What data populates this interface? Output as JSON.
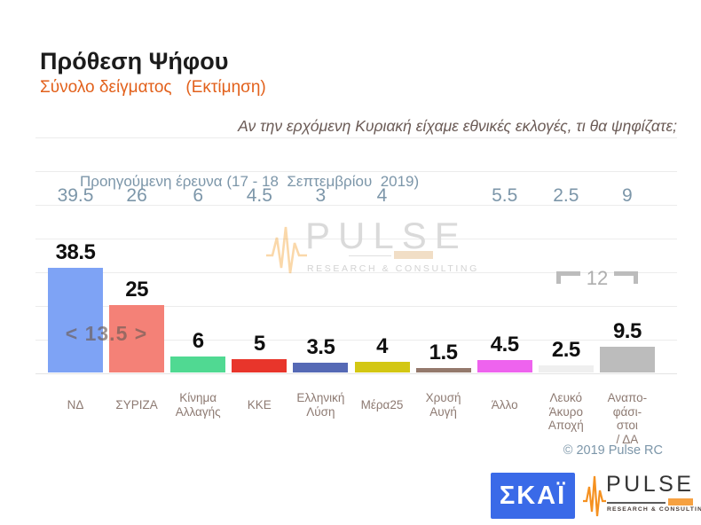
{
  "header": {
    "title": "Πρόθεση Ψήφου",
    "subtitle": "Σύνολο δείγματος   (Εκτίμηση)",
    "question": "Αν την ερχόμενη Κυριακή είχαμε εθνικές εκλογές, τι θα ψηφίζατε;"
  },
  "previous_survey": {
    "label": "Προηγούμενη έρευνα (17 - 18  Σεπτεμβρίου  2019)"
  },
  "chart_data": {
    "type": "bar",
    "title": "Πρόθεση Ψήφου",
    "subtitle": "Σύνολο δείγματος (Εκτίμηση)",
    "categories": [
      "ΝΔ",
      "ΣΥΡΙΖΑ",
      "Κίνημα\nΑλλαγής",
      "ΚΚΕ",
      "Ελληνική\nΛύση",
      "Μέρα25",
      "Χρυσή\nΑυγή",
      "Άλλο",
      "Λευκό\nΆκυρο\nΑποχή",
      "Αναπο-\nφάσι-\nστοι\n/ ΔΑ"
    ],
    "series": [
      {
        "name": "Εκτίμηση",
        "values": [
          38.5,
          25,
          6,
          5,
          3.5,
          4,
          1.5,
          4.5,
          2.5,
          9.5
        ]
      },
      {
        "name": "Προηγούμενη έρευνα (17 - 18 Σεπτεμβρίου 2019)",
        "values": [
          39.5,
          26,
          6,
          4.5,
          3,
          4,
          null,
          5.5,
          2.5,
          9
        ]
      }
    ],
    "bar_colors": [
      "#7ea3f5",
      "#f48177",
      "#50d992",
      "#e8352b",
      "#5569b5",
      "#d3c713",
      "#94796c",
      "#ee63ee",
      "#efefef",
      "#bcbcbc"
    ],
    "ylim": [
      0,
      42
    ],
    "grid": "horizontal-light",
    "legend": "none",
    "annotations": [
      {
        "text": "< 13.5 >",
        "columns": [
          0,
          1
        ]
      },
      {
        "text": "12",
        "columns": [
          8,
          9
        ]
      }
    ]
  },
  "annotations": {
    "lead": "< 13.5 >",
    "sum_last_two": "12"
  },
  "footer": {
    "copyright": "© 2019 Pulse RC"
  },
  "logos": {
    "skai_text": "ΣΚΑΪ",
    "pulse_text": "PULSE",
    "pulse_subtext": "RESEARCH & CONSULTING"
  },
  "colors": {
    "accent_orange": "#e2611c",
    "steel_blue_text": "#7c96a9",
    "category_text": "#8d7a72",
    "value_text": "#0f0f0f",
    "annotation_gray": "#b3b3b3",
    "skai_blue": "#3a6ae8",
    "pulse_orange": "#f59120"
  }
}
